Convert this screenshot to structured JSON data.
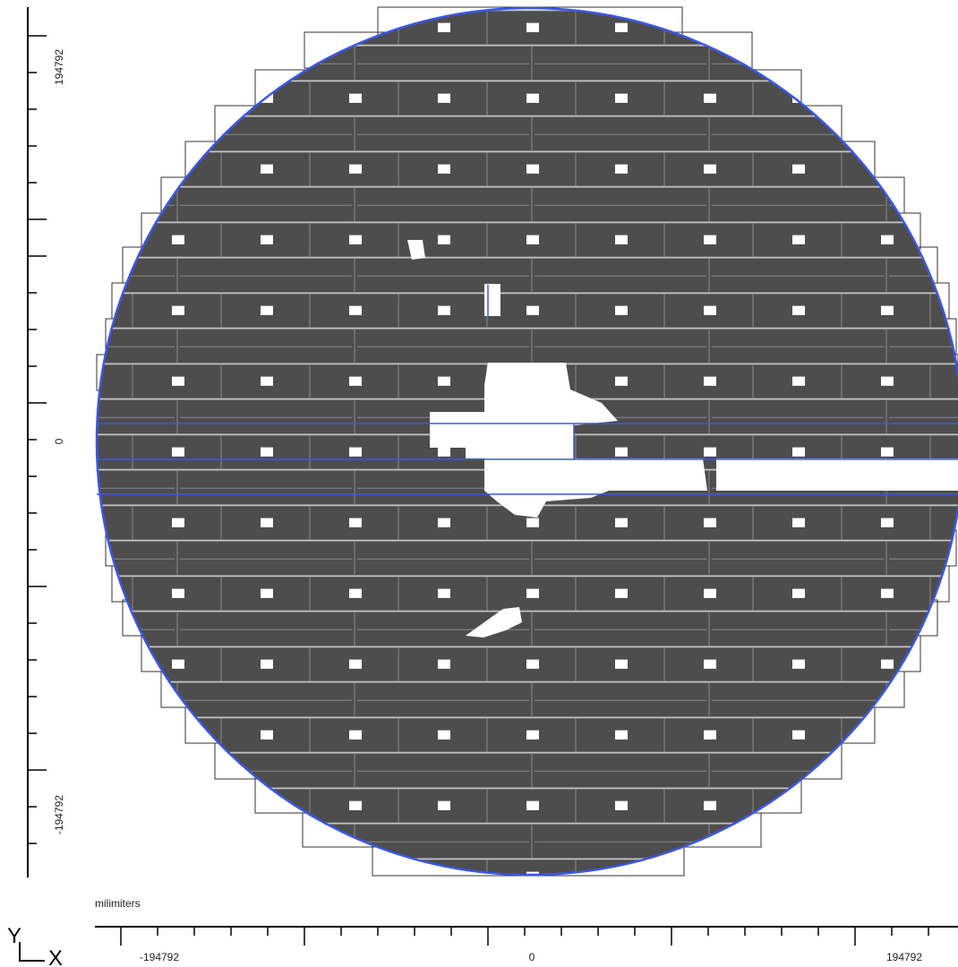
{
  "units_label": "milimiters",
  "axis_letters": {
    "y": "Y",
    "x": "X"
  },
  "x_ticks": [
    {
      "value": -194792,
      "label": "-194792"
    },
    {
      "value": 0,
      "label": "0"
    },
    {
      "value": 194792,
      "label": "194792"
    }
  ],
  "y_ticks": [
    {
      "value": 194792,
      "label": "194792"
    },
    {
      "value": 0,
      "label": "0"
    },
    {
      "value": -194792,
      "label": "-194792"
    }
  ],
  "colors": {
    "die": "#4d4d4d",
    "wafer_edge": "#3b57e6",
    "die_outline": "#8a8a8a",
    "field_outline": "#333333",
    "pad": "#ffffff"
  }
}
